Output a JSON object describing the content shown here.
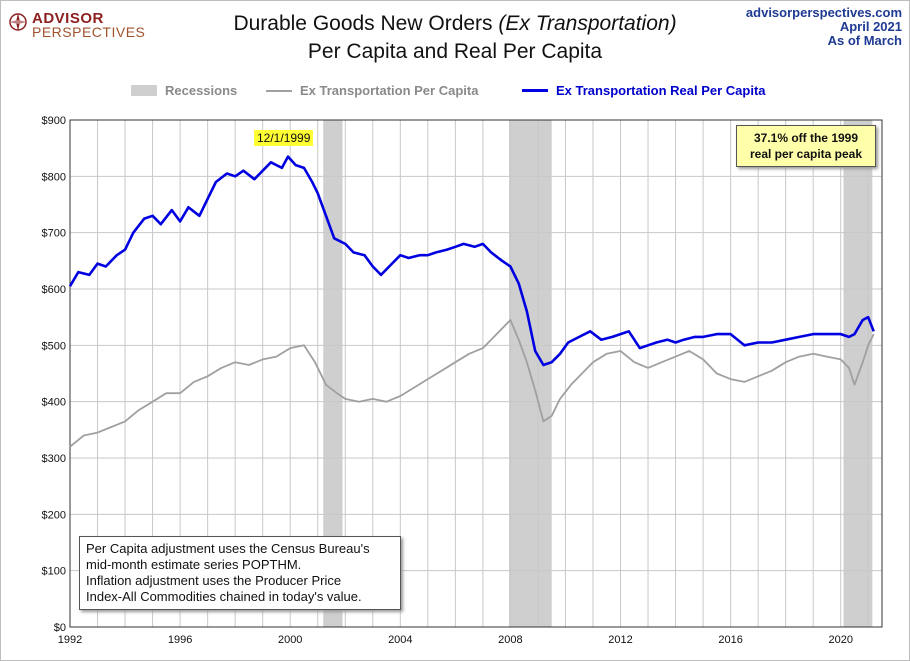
{
  "logo": {
    "line1": "ADVISOR",
    "line2": "PERSPECTIVES"
  },
  "title": {
    "line1_main": "Durable Goods New Orders ",
    "line1_italic": "(Ex Transportation)",
    "line2": "Per Capita and Real Per Capita"
  },
  "source": {
    "site": "advisorperspectives.com",
    "date": "April 2021",
    "as_of": "As of March"
  },
  "legend": {
    "recessions": "Recessions",
    "nominal": "Ex Transportation Per Capita",
    "real": "Ex Transportation Real Per Capita"
  },
  "annotations": {
    "peak_date": "12/1/1999",
    "callout_line1": "37.1% off the 1999",
    "callout_line2": "real per capita peak",
    "note_line1": "Per Capita adjustment uses the Census Bureau's",
    "note_line2": "mid-month estimate series POPTHM.",
    "note_line3": "Inflation adjustment uses the Producer Price",
    "note_line4": "Index-All Commodities chained in today's value."
  },
  "colors": {
    "real": "#0000e0",
    "nominal": "#a0a0a0",
    "recession": "#cfcfcf",
    "grid": "#c8c8c8"
  },
  "chart_data": {
    "type": "line",
    "xlim": [
      1992,
      2021.5
    ],
    "ylim": [
      0,
      900
    ],
    "x_ticks": [
      "1992",
      "1996",
      "2000",
      "2004",
      "2008",
      "2012",
      "2016",
      "2020"
    ],
    "y_ticks": [
      "$0",
      "$100",
      "$200",
      "$300",
      "$400",
      "$500",
      "$600",
      "$700",
      "$800",
      "$900"
    ],
    "recessions": [
      [
        2001.2,
        2001.9
      ],
      [
        2007.95,
        2009.5
      ],
      [
        2020.1,
        2021.15
      ]
    ],
    "series": [
      {
        "name": "Ex Transportation Real Per Capita",
        "x": [
          1992.0,
          1992.3,
          1992.7,
          1993.0,
          1993.3,
          1993.7,
          1994.0,
          1994.3,
          1994.7,
          1995.0,
          1995.3,
          1995.7,
          1996.0,
          1996.3,
          1996.7,
          1997.0,
          1997.3,
          1997.7,
          1998.0,
          1998.3,
          1998.7,
          1999.0,
          1999.3,
          1999.7,
          1999.92,
          2000.2,
          2000.5,
          2000.8,
          2001.0,
          2001.3,
          2001.6,
          2002.0,
          2002.3,
          2002.7,
          2003.0,
          2003.3,
          2003.7,
          2004.0,
          2004.3,
          2004.7,
          2005.0,
          2005.3,
          2005.7,
          2006.0,
          2006.3,
          2006.7,
          2007.0,
          2007.3,
          2007.7,
          2008.0,
          2008.3,
          2008.6,
          2008.9,
          2009.2,
          2009.5,
          2009.8,
          2010.1,
          2010.5,
          2010.9,
          2011.3,
          2011.7,
          2012.0,
          2012.3,
          2012.7,
          2013.0,
          2013.3,
          2013.7,
          2014.0,
          2014.3,
          2014.7,
          2015.0,
          2015.5,
          2016.0,
          2016.5,
          2017.0,
          2017.5,
          2018.0,
          2018.5,
          2019.0,
          2019.5,
          2020.0,
          2020.3,
          2020.5,
          2020.8,
          2021.0,
          2021.2
        ],
        "y": [
          605,
          630,
          625,
          645,
          640,
          660,
          670,
          700,
          725,
          730,
          715,
          740,
          720,
          745,
          730,
          760,
          790,
          805,
          800,
          810,
          795,
          810,
          825,
          815,
          835,
          820,
          815,
          790,
          770,
          730,
          690,
          680,
          665,
          660,
          640,
          625,
          645,
          660,
          655,
          660,
          660,
          665,
          670,
          675,
          680,
          675,
          680,
          665,
          650,
          640,
          610,
          560,
          490,
          465,
          470,
          485,
          505,
          515,
          525,
          510,
          515,
          520,
          525,
          495,
          500,
          505,
          510,
          505,
          510,
          515,
          515,
          520,
          520,
          500,
          505,
          505,
          510,
          515,
          520,
          520,
          520,
          515,
          520,
          545,
          550,
          525
        ]
      },
      {
        "name": "Ex Transportation Per Capita",
        "x": [
          1992.0,
          1992.5,
          1993.0,
          1993.5,
          1994.0,
          1994.5,
          1995.0,
          1995.5,
          1996.0,
          1996.5,
          1997.0,
          1997.5,
          1998.0,
          1998.5,
          1999.0,
          1999.5,
          2000.0,
          2000.5,
          2000.9,
          2001.3,
          2001.7,
          2002.0,
          2002.5,
          2003.0,
          2003.5,
          2004.0,
          2004.5,
          2005.0,
          2005.5,
          2006.0,
          2006.5,
          2007.0,
          2007.5,
          2008.0,
          2008.3,
          2008.6,
          2008.9,
          2009.2,
          2009.5,
          2009.8,
          2010.2,
          2010.6,
          2011.0,
          2011.5,
          2012.0,
          2012.5,
          2013.0,
          2013.5,
          2014.0,
          2014.5,
          2015.0,
          2015.5,
          2016.0,
          2016.5,
          2017.0,
          2017.5,
          2018.0,
          2018.5,
          2019.0,
          2019.5,
          2020.0,
          2020.3,
          2020.5,
          2020.8,
          2021.0,
          2021.2
        ],
        "y": [
          320,
          340,
          345,
          355,
          365,
          385,
          400,
          415,
          415,
          435,
          445,
          460,
          470,
          465,
          475,
          480,
          495,
          500,
          470,
          430,
          415,
          405,
          400,
          405,
          400,
          410,
          425,
          440,
          455,
          470,
          485,
          495,
          520,
          545,
          510,
          470,
          420,
          365,
          375,
          405,
          430,
          450,
          470,
          485,
          490,
          470,
          460,
          470,
          480,
          490,
          475,
          450,
          440,
          435,
          445,
          455,
          470,
          480,
          485,
          480,
          475,
          460,
          430,
          470,
          500,
          520
        ]
      }
    ]
  }
}
